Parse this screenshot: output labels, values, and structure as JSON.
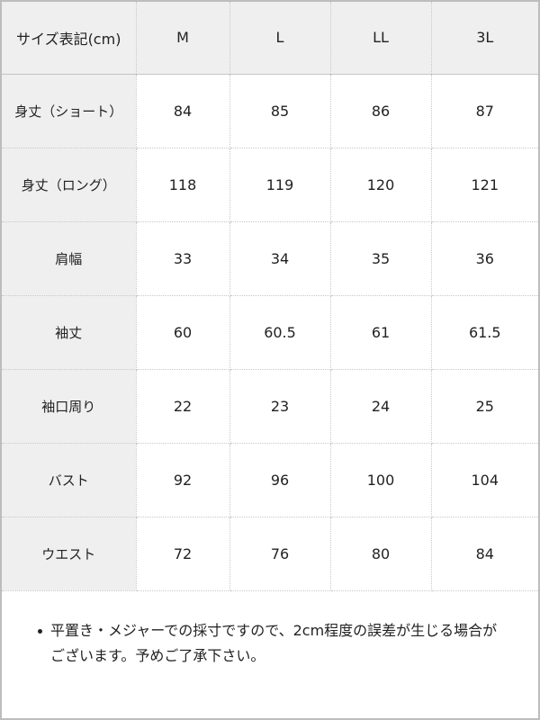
{
  "table": {
    "header": [
      "サイズ表記(cm)",
      "M",
      "L",
      "LL",
      "3L"
    ],
    "rows": [
      {
        "label": "身丈（ショート）",
        "values": [
          "84",
          "85",
          "86",
          "87"
        ]
      },
      {
        "label": "身丈（ロング）",
        "values": [
          "118",
          "119",
          "120",
          "121"
        ]
      },
      {
        "label": "肩幅",
        "values": [
          "33",
          "34",
          "35",
          "36"
        ]
      },
      {
        "label": "袖丈",
        "values": [
          "60",
          "60.5",
          "61",
          "61.5"
        ]
      },
      {
        "label": "袖口周り",
        "values": [
          "22",
          "23",
          "24",
          "25"
        ]
      },
      {
        "label": "バスト",
        "values": [
          "92",
          "96",
          "100",
          "104"
        ]
      },
      {
        "label": "ウエスト",
        "values": [
          "72",
          "76",
          "80",
          "84"
        ]
      }
    ]
  },
  "note": "平置き・メジャーでの採寸ですので、2cm程度の誤差が生じる場合がございます。予めご了承下さい。"
}
